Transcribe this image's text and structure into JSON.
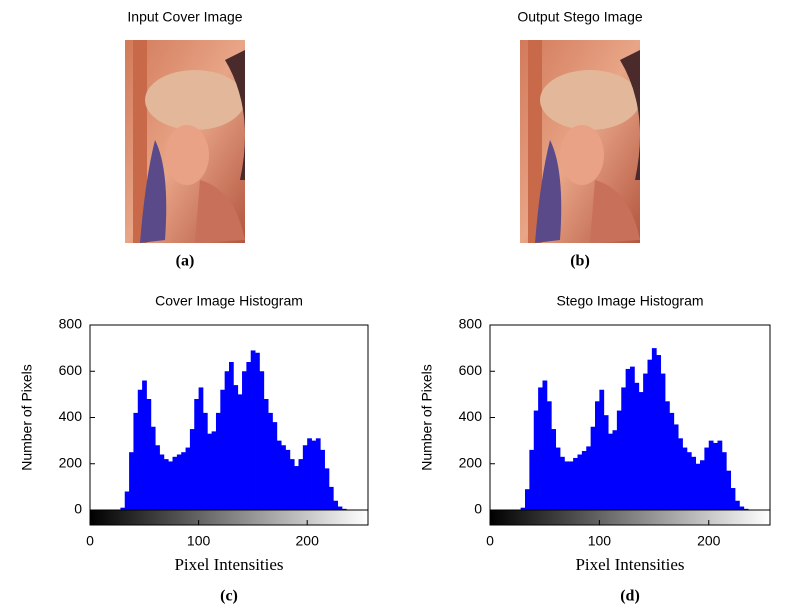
{
  "figure": {
    "images": [
      {
        "title": "Input Cover Image",
        "caption": "(a)"
      },
      {
        "title": "Output Stego Image",
        "caption": "(b)"
      }
    ]
  },
  "chart_data": [
    {
      "type": "histogram",
      "title": "Cover Image Histogram",
      "caption": "(c)",
      "xlabel": "Pixel Intensities",
      "ylabel": "Number of Pixels",
      "color": "#0000ff",
      "bins": [
        0,
        4,
        8,
        12,
        16,
        20,
        24,
        28,
        32,
        36,
        40,
        44,
        48,
        52,
        56,
        60,
        64,
        68,
        72,
        76,
        80,
        84,
        88,
        92,
        96,
        100,
        104,
        108,
        112,
        116,
        120,
        124,
        128,
        132,
        136,
        140,
        144,
        148,
        152,
        156,
        160,
        164,
        168,
        172,
        176,
        180,
        184,
        188,
        192,
        196,
        200,
        204,
        208,
        212,
        216,
        220,
        224,
        228,
        232,
        236,
        240,
        244,
        248,
        252,
        256
      ],
      "values": [
        0,
        0,
        0,
        0,
        0,
        0,
        0,
        10,
        80,
        250,
        420,
        520,
        560,
        480,
        360,
        280,
        240,
        220,
        210,
        230,
        240,
        250,
        270,
        350,
        480,
        530,
        420,
        330,
        340,
        420,
        520,
        600,
        640,
        540,
        500,
        600,
        640,
        690,
        680,
        600,
        480,
        420,
        380,
        300,
        280,
        260,
        220,
        190,
        220,
        280,
        310,
        300,
        310,
        260,
        180,
        100,
        40,
        15,
        5,
        0,
        0,
        0,
        0,
        0
      ],
      "xlim": [
        0,
        256
      ],
      "xticks": [
        0,
        100,
        200
      ],
      "ylim": [
        0,
        800
      ],
      "yticks": [
        0,
        200,
        400,
        600,
        800
      ]
    },
    {
      "type": "histogram",
      "title": "Stego Image Histogram",
      "caption": "(d)",
      "xlabel": "Pixel Intensities",
      "ylabel": "Number of Pixels",
      "color": "#0000ff",
      "bins": [
        0,
        4,
        8,
        12,
        16,
        20,
        24,
        28,
        32,
        36,
        40,
        44,
        48,
        52,
        56,
        60,
        64,
        68,
        72,
        76,
        80,
        84,
        88,
        92,
        96,
        100,
        104,
        108,
        112,
        116,
        120,
        124,
        128,
        132,
        136,
        140,
        144,
        148,
        152,
        156,
        160,
        164,
        168,
        172,
        176,
        180,
        184,
        188,
        192,
        196,
        200,
        204,
        208,
        212,
        216,
        220,
        224,
        228,
        232,
        236,
        240,
        244,
        248,
        252,
        256
      ],
      "values": [
        0,
        0,
        0,
        0,
        0,
        0,
        0,
        10,
        90,
        260,
        430,
        530,
        560,
        470,
        350,
        270,
        230,
        210,
        210,
        225,
        240,
        255,
        275,
        360,
        470,
        520,
        410,
        330,
        345,
        430,
        530,
        610,
        620,
        550,
        510,
        590,
        650,
        700,
        670,
        590,
        470,
        420,
        370,
        310,
        270,
        250,
        230,
        200,
        215,
        270,
        300,
        290,
        300,
        250,
        170,
        95,
        40,
        15,
        5,
        0,
        0,
        0,
        0,
        0
      ],
      "xlim": [
        0,
        256
      ],
      "xticks": [
        0,
        100,
        200
      ],
      "ylim": [
        0,
        800
      ],
      "yticks": [
        0,
        200,
        400,
        600,
        800
      ]
    }
  ]
}
